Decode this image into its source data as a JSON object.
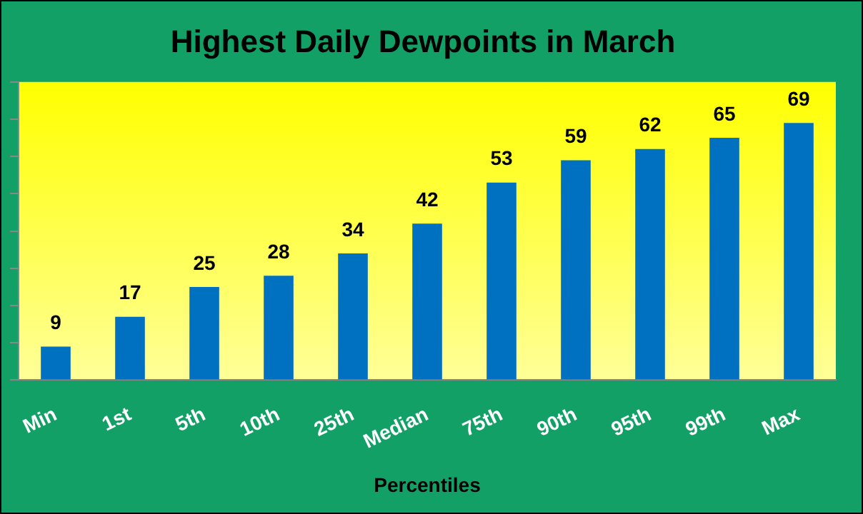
{
  "chart_data": {
    "type": "bar",
    "title": "Highest Daily Dewpoints in March",
    "xlabel": "Percentiles",
    "categories": [
      "Min",
      "1st",
      "5th",
      "10th",
      "25th",
      "Median",
      "75th",
      "90th",
      "95th",
      "99th",
      "Max"
    ],
    "values": [
      9,
      17,
      25,
      28,
      34,
      42,
      53,
      59,
      62,
      65,
      69
    ],
    "color": "#0070c0",
    "ylim": [
      0,
      80
    ],
    "yticks": [
      {
        "value": 0,
        "label": null
      },
      {
        "value": 10,
        "label": null
      },
      {
        "value": 20,
        "label": null
      },
      {
        "value": 30,
        "label": null
      },
      {
        "value": 40,
        "label": null
      },
      {
        "value": 50,
        "label": null
      },
      {
        "value": 60,
        "label": null
      },
      {
        "value": 70,
        "label": null
      },
      {
        "value": 80,
        "label": null
      }
    ],
    "tick_labels": "x",
    "grid": false,
    "legend": false,
    "data_labels": true
  }
}
